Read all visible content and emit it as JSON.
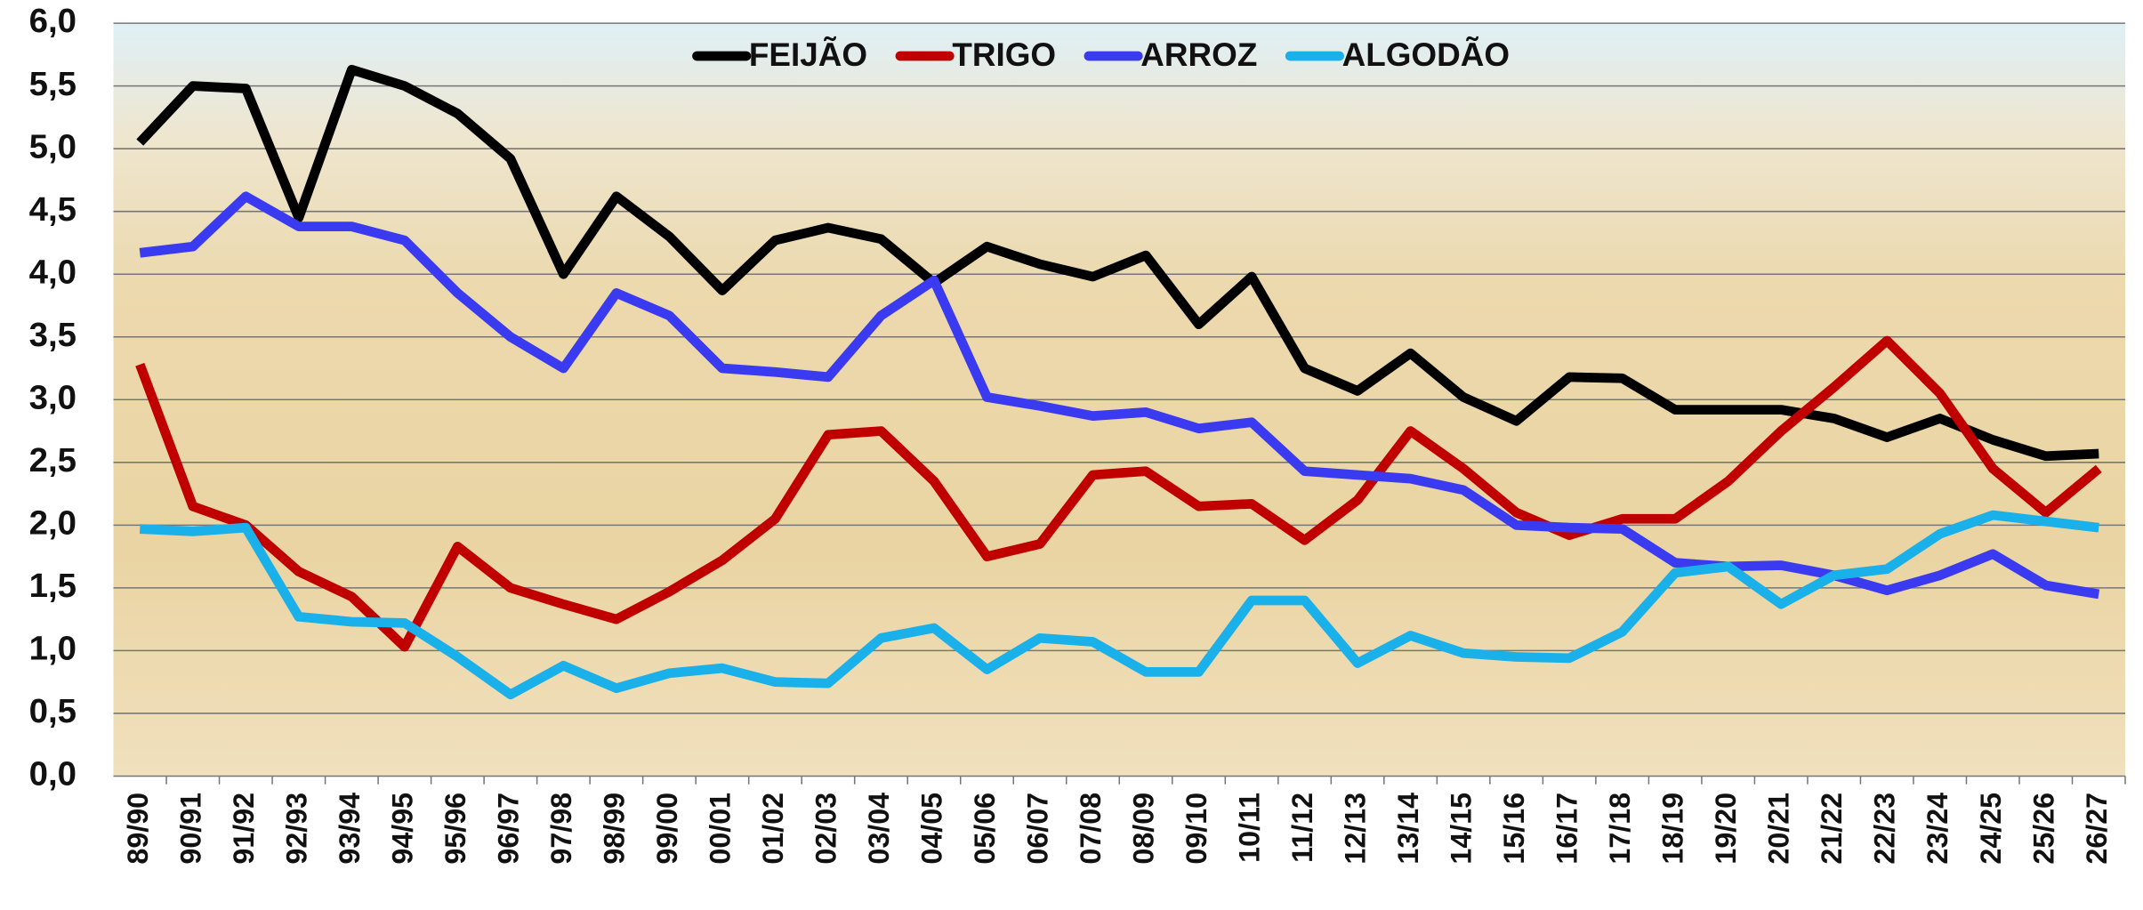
{
  "chart_data": {
    "type": "line",
    "categories": [
      "89/90",
      "90/91",
      "91/92",
      "92/93",
      "93/94",
      "94/95",
      "95/96",
      "96/97",
      "97/98",
      "98/99",
      "99/00",
      "00/01",
      "01/02",
      "02/03",
      "03/04",
      "04/05",
      "05/06",
      "06/07",
      "07/08",
      "08/09",
      "09/10",
      "10/11",
      "11/12",
      "12/13",
      "13/14",
      "14/15",
      "15/16",
      "16/17",
      "17/18",
      "18/19",
      "19/20",
      "20/21",
      "21/22",
      "22/23",
      "23/24",
      "24/25",
      "25/26",
      "26/27"
    ],
    "series": [
      {
        "name": "FEIJÃO",
        "color": "#000000",
        "values": [
          5.05,
          5.5,
          5.48,
          4.45,
          5.63,
          5.5,
          5.28,
          4.92,
          4.0,
          4.62,
          4.3,
          3.87,
          4.27,
          4.37,
          4.28,
          3.93,
          4.22,
          4.08,
          3.98,
          4.15,
          3.6,
          3.98,
          3.25,
          3.07,
          3.37,
          3.02,
          2.83,
          3.18,
          3.17,
          2.92,
          2.92,
          2.92,
          2.85,
          2.7,
          2.85,
          2.68,
          2.55,
          2.57
        ]
      },
      {
        "name": "TRIGO",
        "color": "#c00000",
        "values": [
          3.28,
          2.15,
          2.0,
          1.63,
          1.43,
          1.03,
          1.83,
          1.5,
          1.37,
          1.25,
          1.47,
          1.72,
          2.05,
          2.72,
          2.75,
          2.35,
          1.75,
          1.85,
          2.4,
          2.43,
          2.15,
          2.17,
          1.88,
          2.2,
          2.75,
          2.45,
          2.1,
          1.92,
          2.05,
          2.05,
          2.35,
          2.75,
          3.1,
          3.47,
          3.05,
          2.45,
          2.1,
          2.45
        ]
      },
      {
        "name": "ARROZ",
        "color": "#3a3af0",
        "values": [
          4.17,
          4.22,
          4.62,
          4.38,
          4.38,
          4.27,
          3.85,
          3.5,
          3.25,
          3.85,
          3.67,
          3.25,
          3.22,
          3.18,
          3.67,
          3.95,
          3.02,
          2.95,
          2.87,
          2.9,
          2.77,
          2.82,
          2.43,
          2.4,
          2.37,
          2.28,
          2.0,
          1.98,
          1.97,
          1.7,
          1.67,
          1.68,
          1.6,
          1.48,
          1.6,
          1.77,
          1.52,
          1.45
        ]
      },
      {
        "name": "ALGODÃO",
        "color": "#1ab0ea",
        "values": [
          1.97,
          1.95,
          1.98,
          1.27,
          1.23,
          1.22,
          0.95,
          0.65,
          0.88,
          0.7,
          0.82,
          0.86,
          0.75,
          0.74,
          1.1,
          1.18,
          0.85,
          1.1,
          1.07,
          0.83,
          0.83,
          1.4,
          1.4,
          0.9,
          1.12,
          0.98,
          0.95,
          0.94,
          1.15,
          1.62,
          1.67,
          1.37,
          1.6,
          1.65,
          1.93,
          2.08,
          2.03,
          1.98
        ]
      }
    ],
    "ylim": [
      0,
      6
    ],
    "yticks": [
      {
        "value": 0,
        "label": "0,0"
      },
      {
        "value": 0.5,
        "label": "0,5"
      },
      {
        "value": 1,
        "label": "1,0"
      },
      {
        "value": 1.5,
        "label": "1,5"
      },
      {
        "value": 2,
        "label": "2,0"
      },
      {
        "value": 2.5,
        "label": "2,5"
      },
      {
        "value": 3,
        "label": "3,0"
      },
      {
        "value": 3.5,
        "label": "3,5"
      },
      {
        "value": 4,
        "label": "4,0"
      },
      {
        "value": 4.5,
        "label": "4,5"
      },
      {
        "value": 5,
        "label": "5,0"
      },
      {
        "value": 5.5,
        "label": "5,5"
      },
      {
        "value": 6,
        "label": "6,0"
      }
    ],
    "grid": true,
    "legend": "top"
  }
}
